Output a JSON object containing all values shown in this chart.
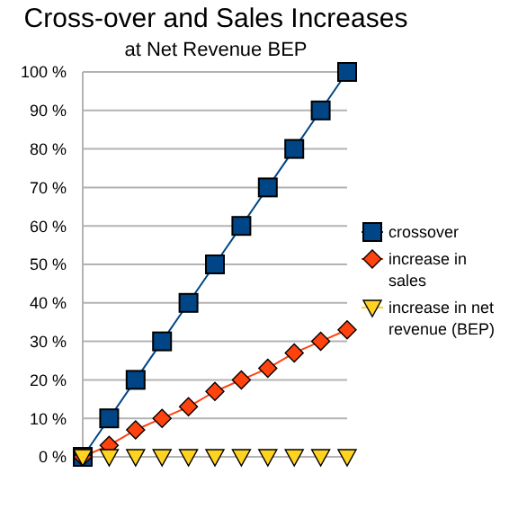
{
  "chart_data": {
    "type": "line",
    "title": "Cross-over and Sales Increases",
    "subtitle": "at Net Revenue BEP",
    "categories": [
      null,
      null,
      null,
      null,
      null,
      null,
      null,
      null,
      null,
      null,
      null
    ],
    "series": [
      {
        "name": "crossover",
        "color": "#004586",
        "marker": "square",
        "values": [
          0,
          10,
          20,
          30,
          40,
          50,
          60,
          70,
          80,
          90,
          100
        ]
      },
      {
        "name": "increase in sales",
        "color": "#ff420e",
        "marker": "diamond",
        "values": [
          0,
          3,
          7,
          10,
          13,
          17,
          20,
          23,
          27,
          30,
          33
        ]
      },
      {
        "name": "increase in net revenue (BEP)",
        "color": "#ffd320",
        "marker": "triangle-down",
        "values": [
          0,
          0,
          0,
          0,
          0,
          0,
          0,
          0,
          0,
          0,
          0
        ]
      }
    ],
    "ylim": [
      0,
      100
    ],
    "yticks": [
      {
        "value": 0,
        "label": "0 %"
      },
      {
        "value": 10,
        "label": "10 %"
      },
      {
        "value": 20,
        "label": "20 %"
      },
      {
        "value": 30,
        "label": "30 %"
      },
      {
        "value": 40,
        "label": "40 %"
      },
      {
        "value": 50,
        "label": "50 %"
      },
      {
        "value": 60,
        "label": "60 %"
      },
      {
        "value": 70,
        "label": "70 %"
      },
      {
        "value": 80,
        "label": "80 %"
      },
      {
        "value": 90,
        "label": "90 %"
      },
      {
        "value": 100,
        "label": "100 %"
      }
    ],
    "grid": "y",
    "legend": "right",
    "tick_labels": "y"
  }
}
